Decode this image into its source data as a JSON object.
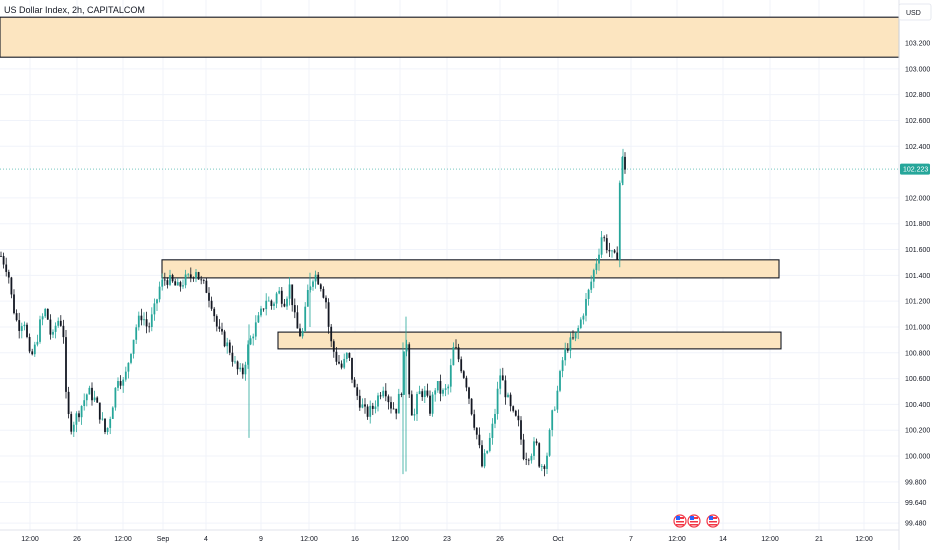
{
  "chart_data": {
    "type": "candlestick",
    "title": "US Dollar Index, 2h, CAPITALCOM",
    "currency": "USD",
    "ylim": [
      99.48,
      103.42
    ],
    "y_ticks": [
      "103.200",
      "103.000",
      "102.800",
      "102.600",
      "102.400",
      "102.000",
      "101.800",
      "101.600",
      "101.400",
      "101.200",
      "101.000",
      "100.800",
      "100.600",
      "100.400",
      "100.200",
      "100.000",
      "99.800",
      "99.640",
      "99.480"
    ],
    "x_ticks": [
      "12:00",
      "26",
      "12:00",
      "Sep",
      "4",
      "9",
      "12:00",
      "16",
      "12:00",
      "23",
      "26",
      "Oct",
      "7",
      "12:00",
      "14",
      "12:00",
      "21",
      "12:00"
    ],
    "last_price": {
      "label": "102.223",
      "value": 102.223
    },
    "colors": {
      "up": "#26a69a",
      "down": "#131722",
      "zone_fill": "#fce5c0",
      "zone_stroke": "#131722",
      "last_price": "#26a69a"
    },
    "zones": [
      {
        "low": 103.09,
        "high": 103.4
      },
      {
        "low": 101.38,
        "high": 101.52
      },
      {
        "low": 100.83,
        "high": 100.96
      }
    ],
    "events": [
      "us-flag-icon",
      "us-flag-icon",
      "us-flag-icon"
    ],
    "close_path": [
      [
        1,
        101.55
      ],
      [
        8,
        101.44
      ],
      [
        12,
        101.2
      ],
      [
        18,
        101.0
      ],
      [
        24,
        101.07
      ],
      [
        30,
        100.74
      ],
      [
        35,
        100.84
      ],
      [
        40,
        101.02
      ],
      [
        46,
        101.14
      ],
      [
        52,
        100.88
      ],
      [
        57,
        101.06
      ],
      [
        63,
        101.02
      ],
      [
        66,
        100.45
      ],
      [
        70,
        100.22
      ],
      [
        76,
        100.3
      ],
      [
        82,
        100.4
      ],
      [
        88,
        100.5
      ],
      [
        94,
        100.45
      ],
      [
        100,
        100.32
      ],
      [
        106,
        100.16
      ],
      [
        112,
        100.38
      ],
      [
        118,
        100.62
      ],
      [
        124,
        100.56
      ],
      [
        130,
        100.8
      ],
      [
        136,
        101.0
      ],
      [
        142,
        101.1
      ],
      [
        148,
        100.98
      ],
      [
        154,
        101.12
      ],
      [
        160,
        101.32
      ],
      [
        166,
        101.38
      ],
      [
        172,
        101.34
      ],
      [
        178,
        101.3
      ],
      [
        184,
        101.36
      ],
      [
        190,
        101.38
      ],
      [
        196,
        101.45
      ],
      [
        200,
        101.35
      ],
      [
        206,
        101.3
      ],
      [
        212,
        101.18
      ],
      [
        218,
        100.96
      ],
      [
        224,
        100.9
      ],
      [
        230,
        100.82
      ],
      [
        236,
        100.68
      ],
      [
        242,
        100.62
      ],
      [
        248,
        100.84
      ],
      [
        254,
        100.98
      ],
      [
        260,
        101.08
      ],
      [
        266,
        101.22
      ],
      [
        272,
        101.16
      ],
      [
        278,
        101.28
      ],
      [
        284,
        101.2
      ],
      [
        290,
        101.32
      ],
      [
        296,
        101.0
      ],
      [
        302,
        100.92
      ],
      [
        308,
        101.28
      ],
      [
        314,
        101.42
      ],
      [
        320,
        101.35
      ],
      [
        326,
        101.2
      ],
      [
        330,
        100.9
      ],
      [
        336,
        100.76
      ],
      [
        342,
        100.68
      ],
      [
        348,
        100.8
      ],
      [
        354,
        100.52
      ],
      [
        360,
        100.42
      ],
      [
        366,
        100.32
      ],
      [
        372,
        100.36
      ],
      [
        378,
        100.46
      ],
      [
        384,
        100.56
      ],
      [
        390,
        100.4
      ],
      [
        396,
        100.36
      ],
      [
        402,
        100.54
      ],
      [
        406,
        100.98
      ],
      [
        410,
        100.4
      ],
      [
        414,
        100.3
      ],
      [
        418,
        100.48
      ],
      [
        424,
        100.5
      ],
      [
        430,
        100.36
      ],
      [
        436,
        100.56
      ],
      [
        442,
        100.48
      ],
      [
        448,
        100.52
      ],
      [
        454,
        100.86
      ],
      [
        460,
        100.72
      ],
      [
        466,
        100.58
      ],
      [
        472,
        100.34
      ],
      [
        478,
        100.12
      ],
      [
        482,
        99.92
      ],
      [
        488,
        100.06
      ],
      [
        494,
        100.28
      ],
      [
        500,
        100.64
      ],
      [
        506,
        100.48
      ],
      [
        512,
        100.32
      ],
      [
        518,
        100.26
      ],
      [
        524,
        100.0
      ],
      [
        530,
        100.02
      ],
      [
        536,
        100.1
      ],
      [
        540,
        99.92
      ],
      [
        546,
        99.96
      ],
      [
        552,
        100.3
      ],
      [
        558,
        100.52
      ],
      [
        563,
        100.76
      ],
      [
        568,
        100.86
      ],
      [
        574,
        100.9
      ],
      [
        579,
        101.0
      ],
      [
        584,
        101.14
      ],
      [
        589,
        101.28
      ],
      [
        594,
        101.44
      ],
      [
        598,
        101.56
      ],
      [
        602,
        101.72
      ],
      [
        606,
        101.64
      ],
      [
        610,
        101.58
      ],
      [
        614,
        101.52
      ],
      [
        618,
        101.58
      ],
      [
        620,
        102.18
      ],
      [
        623,
        102.32
      ],
      [
        626,
        102.2
      ]
    ]
  }
}
